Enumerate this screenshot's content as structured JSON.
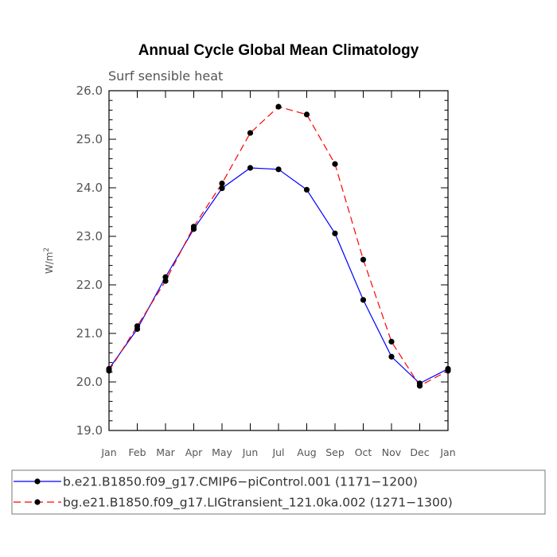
{
  "chart_data": {
    "type": "line",
    "title": "Annual Cycle Global Mean Climatology",
    "subtitle": "Surf sensible heat",
    "xlabel": "",
    "ylabel": "W/m",
    "ylabel_superscript": "2",
    "categories": [
      "Jan",
      "Feb",
      "Mar",
      "Apr",
      "May",
      "Jun",
      "Jul",
      "Aug",
      "Sep",
      "Oct",
      "Nov",
      "Dec",
      "Jan"
    ],
    "ylim": [
      19.0,
      26.0
    ],
    "yticks": [
      "19.0",
      "20.0",
      "21.0",
      "22.0",
      "23.0",
      "24.0",
      "25.0",
      "26.0"
    ],
    "grid": false,
    "legend_position": "bottom",
    "series": [
      {
        "name": "b.e21.B1850.f09_g17.CMIP6−piControl.001 (1171−1200)",
        "color": "#0000ff",
        "dash": "solid",
        "values": [
          20.27,
          21.09,
          22.16,
          23.15,
          23.99,
          24.41,
          24.38,
          23.96,
          23.06,
          21.69,
          20.52,
          19.97,
          20.27
        ]
      },
      {
        "name": "bg.e21.B1850.f09_g17.LIGtransient_121.0ka.002 (1271−1300)",
        "color": "#ff0000",
        "dash": "dashed",
        "values": [
          20.23,
          21.15,
          22.08,
          23.2,
          24.09,
          25.13,
          25.67,
          25.51,
          24.49,
          22.52,
          20.83,
          19.92,
          20.23
        ]
      }
    ]
  }
}
